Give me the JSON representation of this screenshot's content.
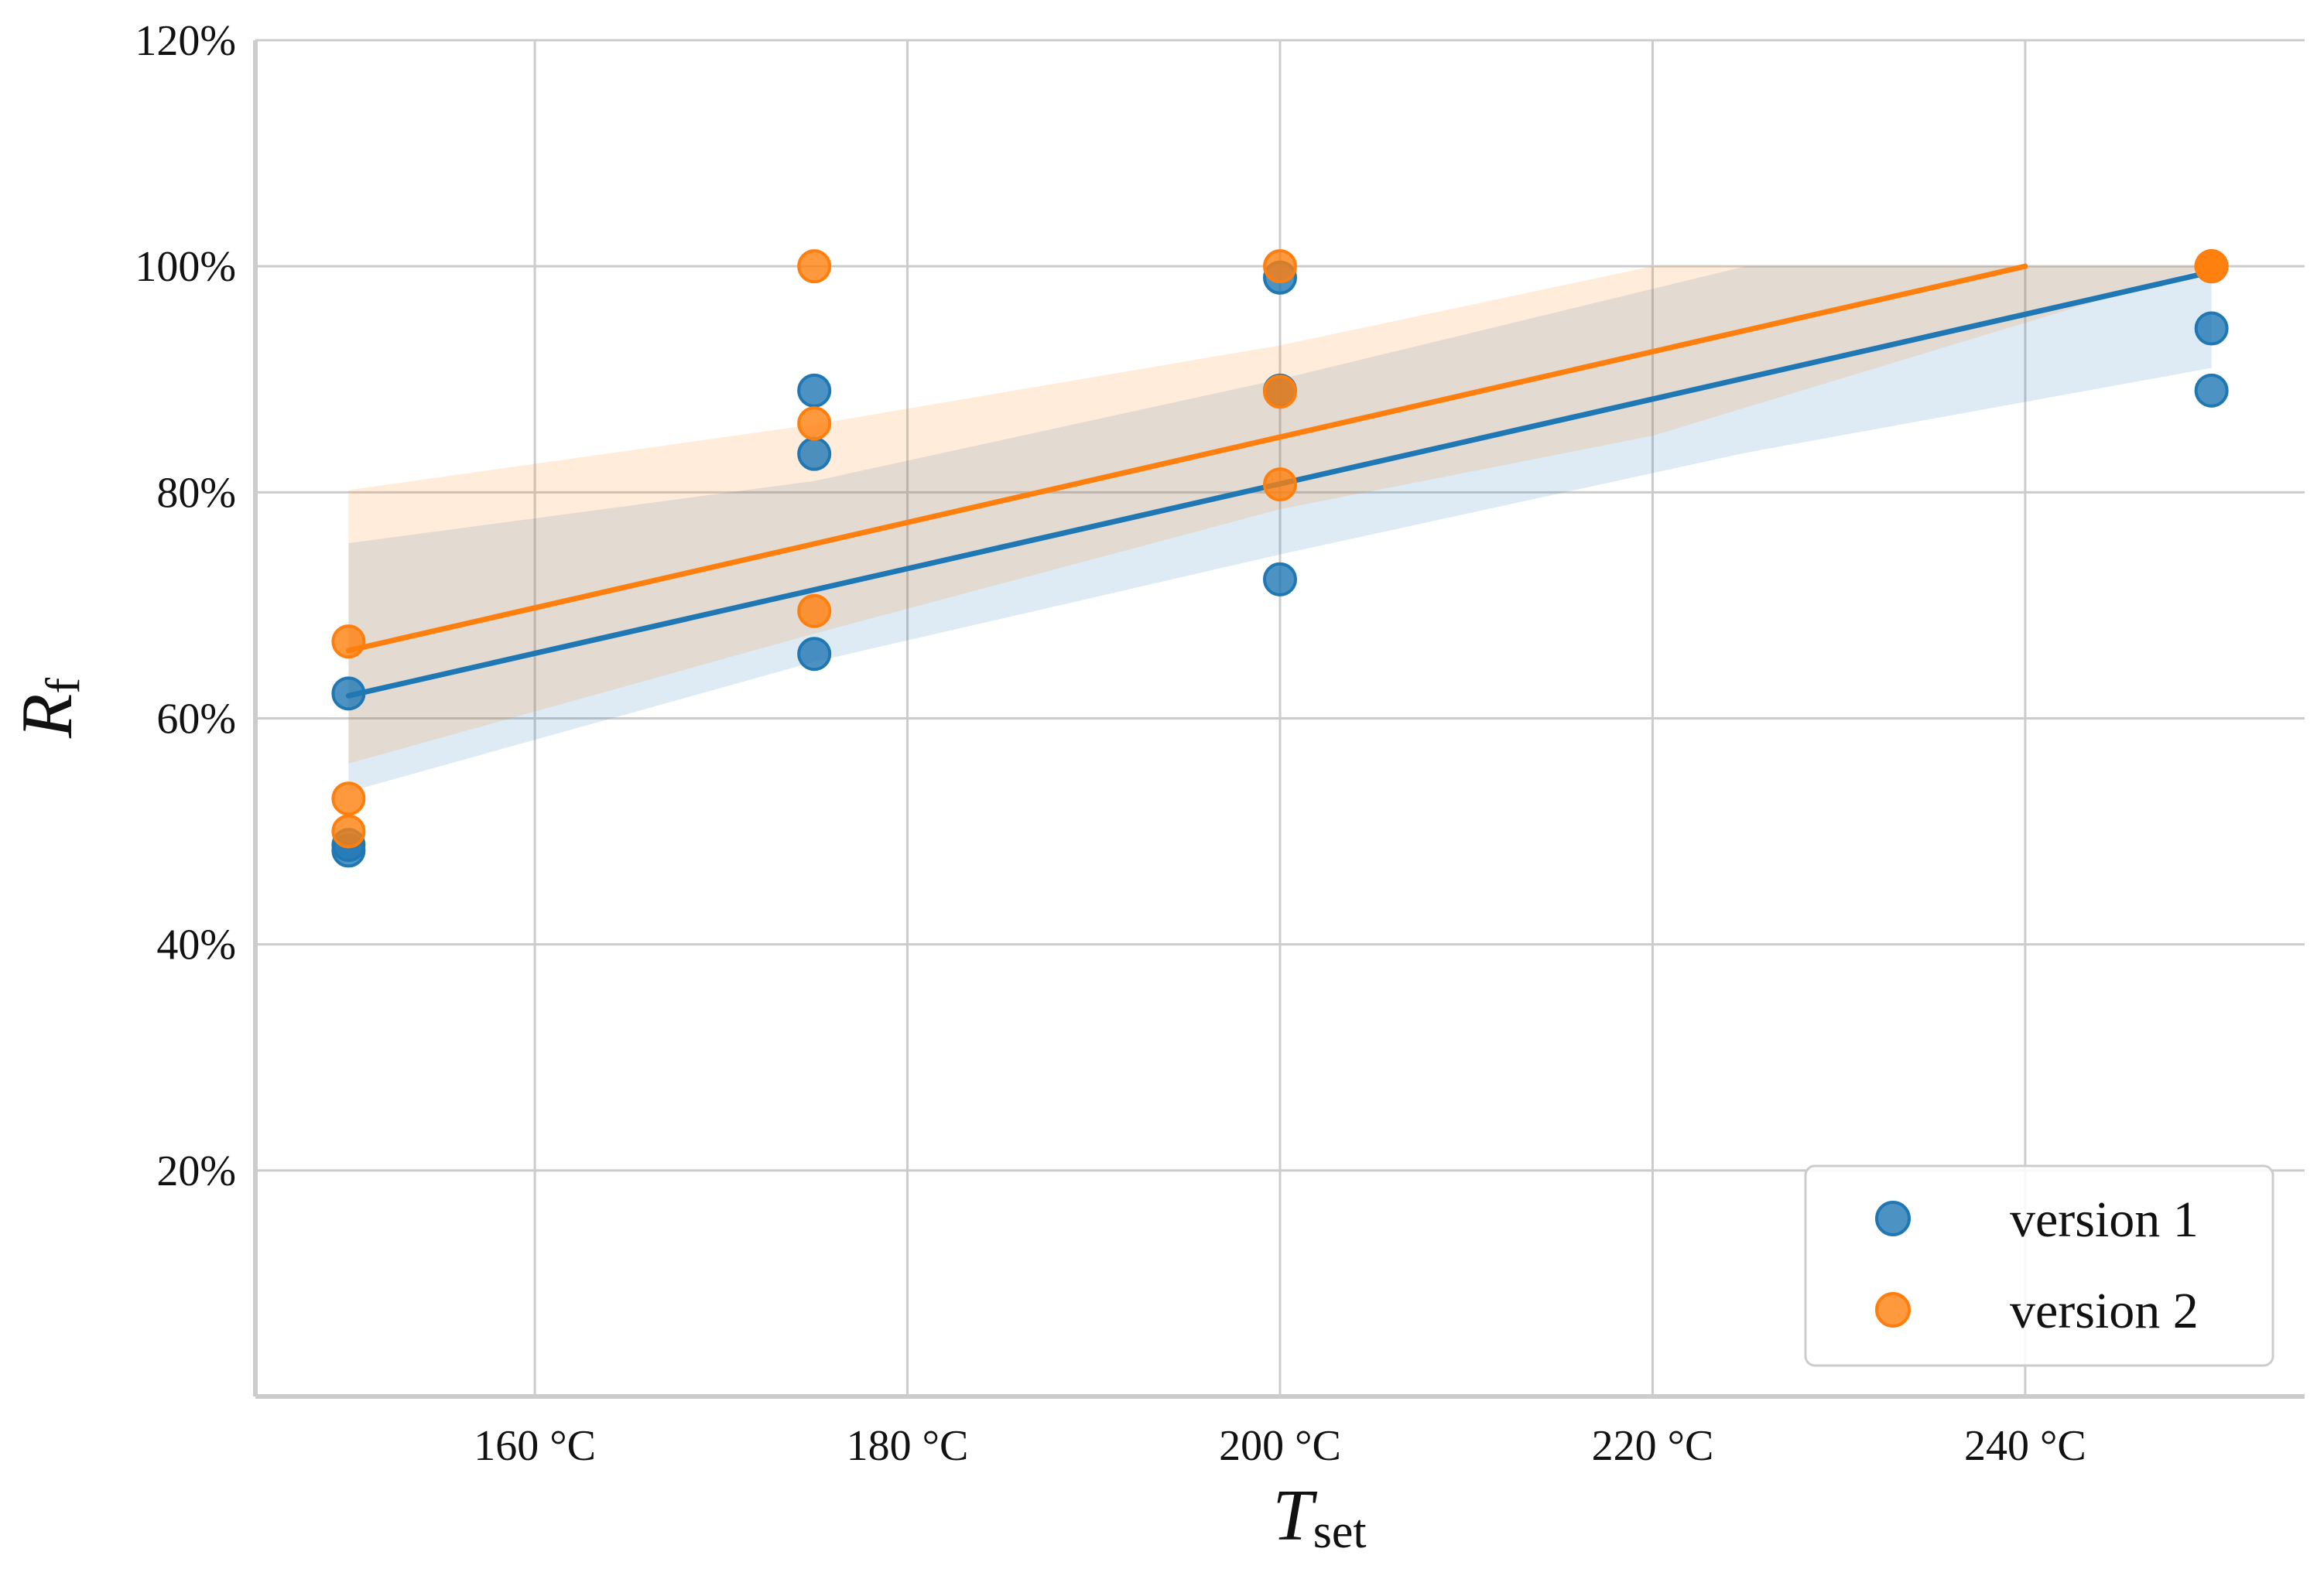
{
  "chart_data": {
    "type": "scatter",
    "title": "",
    "xlabel": {
      "main": "T",
      "sub": "set"
    },
    "ylabel": {
      "main": "R",
      "sub": "f"
    },
    "xlim": [
      145,
      255
    ],
    "ylim": [
      0,
      120
    ],
    "x_ticks": [
      160,
      180,
      200,
      220,
      240
    ],
    "x_tick_labels": [
      "160 °C",
      "180 °C",
      "200 °C",
      "220 °C",
      "240 °C"
    ],
    "y_ticks": [
      20,
      40,
      60,
      80,
      100,
      120
    ],
    "y_tick_labels": [
      "20%",
      "40%",
      "60%",
      "80%",
      "100%",
      "120%"
    ],
    "grid": true,
    "legend_position": "bottom-right",
    "series": [
      {
        "name": "version 1",
        "color": "#1f77b4",
        "points": [
          {
            "x": 150,
            "y": 62.2
          },
          {
            "x": 150,
            "y": 48.8
          },
          {
            "x": 150,
            "y": 48.3
          },
          {
            "x": 175,
            "y": 89.0
          },
          {
            "x": 175,
            "y": 83.4
          },
          {
            "x": 175,
            "y": 65.7
          },
          {
            "x": 200,
            "y": 99.0
          },
          {
            "x": 200,
            "y": 89.0
          },
          {
            "x": 200,
            "y": 72.3
          },
          {
            "x": 250,
            "y": 94.5
          },
          {
            "x": 250,
            "y": 89.0
          },
          {
            "x": 250,
            "y": 100.0
          }
        ],
        "fit_line": [
          {
            "x": 150,
            "y": 62.0
          },
          {
            "x": 250,
            "y": 99.5
          }
        ],
        "ci_band": [
          {
            "x": 150,
            "upper": 75.5,
            "lower": 53.5
          },
          {
            "x": 175,
            "upper": 81.0,
            "lower": 65.0
          },
          {
            "x": 200,
            "upper": 90.0,
            "lower": 74.5
          },
          {
            "x": 225,
            "upper": 100.0,
            "lower": 83.5
          },
          {
            "x": 250,
            "upper": 100.0,
            "lower": 91.0
          }
        ]
      },
      {
        "name": "version 2",
        "color": "#ff7f0e",
        "points": [
          {
            "x": 150,
            "y": 66.8
          },
          {
            "x": 150,
            "y": 52.9
          },
          {
            "x": 150,
            "y": 50.0
          },
          {
            "x": 175,
            "y": 100.0
          },
          {
            "x": 175,
            "y": 86.1
          },
          {
            "x": 175,
            "y": 69.5
          },
          {
            "x": 200,
            "y": 100.0
          },
          {
            "x": 200,
            "y": 88.9
          },
          {
            "x": 200,
            "y": 80.7
          },
          {
            "x": 250,
            "y": 100.0
          },
          {
            "x": 250,
            "y": 100.0
          },
          {
            "x": 250,
            "y": 100.0
          }
        ],
        "fit_line": [
          {
            "x": 150,
            "y": 66.0
          },
          {
            "x": 240,
            "y": 100.0
          }
        ],
        "ci_band": [
          {
            "x": 150,
            "upper": 80.2,
            "lower": 56.0
          },
          {
            "x": 175,
            "upper": 86.0,
            "lower": 67.5
          },
          {
            "x": 200,
            "upper": 93.0,
            "lower": 78.5
          },
          {
            "x": 220,
            "upper": 100.0,
            "lower": 85.0
          },
          {
            "x": 250,
            "upper": 100.0,
            "lower": 100.0
          }
        ]
      }
    ]
  }
}
